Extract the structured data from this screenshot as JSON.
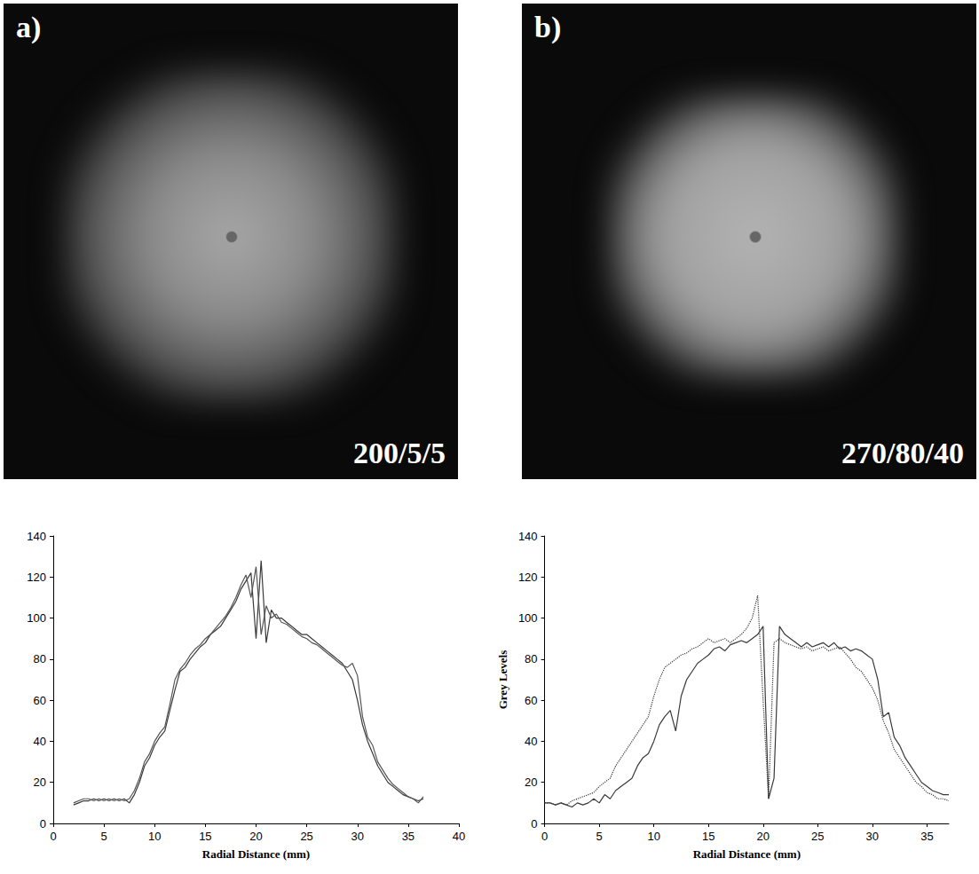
{
  "panels": [
    {
      "label": "a)",
      "caption": "200/5/5"
    },
    {
      "label": "b)",
      "caption": "270/80/40"
    }
  ],
  "chart_data": [
    {
      "type": "line",
      "x": [
        2,
        2.5,
        3,
        3.5,
        4,
        4.5,
        5,
        5.5,
        6,
        6.5,
        7,
        7.5,
        8,
        8.5,
        9,
        9.5,
        10,
        10.5,
        11,
        11.5,
        12,
        12.5,
        13,
        13.5,
        14,
        14.5,
        15,
        15.5,
        16,
        16.5,
        17,
        17.5,
        18,
        18.5,
        19,
        19.5,
        20,
        20.5,
        21,
        21.5,
        22,
        22.5,
        23,
        23.5,
        24,
        24.5,
        25,
        25.5,
        26,
        26.5,
        27,
        27.5,
        28,
        28.5,
        29,
        29.5,
        30,
        30.5,
        31,
        31.5,
        32,
        32.5,
        33,
        33.5,
        34,
        34.5,
        35,
        35.5,
        36,
        36.5
      ],
      "series": [
        {
          "color": "#3a3a3a",
          "line_style": "solid",
          "values": [
            9,
            10,
            11,
            11,
            12,
            11,
            12,
            11,
            12,
            11,
            12,
            10,
            14,
            20,
            28,
            32,
            38,
            42,
            45,
            55,
            65,
            74,
            76,
            80,
            83,
            86,
            88,
            92,
            94,
            96,
            100,
            104,
            108,
            114,
            118,
            122,
            90,
            128,
            88,
            104,
            100,
            100,
            98,
            96,
            94,
            92,
            92,
            90,
            88,
            86,
            84,
            82,
            80,
            78,
            74,
            70,
            60,
            48,
            40,
            34,
            28,
            24,
            20,
            18,
            16,
            14,
            13,
            12,
            11,
            12
          ]
        },
        {
          "color": "#555555",
          "line_style": "solid",
          "values": [
            10,
            11,
            12,
            12,
            11,
            12,
            11,
            12,
            11,
            12,
            11,
            12,
            16,
            22,
            30,
            34,
            40,
            44,
            47,
            58,
            70,
            75,
            78,
            82,
            85,
            87,
            90,
            92,
            95,
            98,
            101,
            105,
            110,
            116,
            121,
            110,
            125,
            92,
            106,
            100,
            102,
            98,
            97,
            95,
            93,
            91,
            90,
            88,
            87,
            85,
            83,
            81,
            79,
            77,
            76,
            78,
            72,
            52,
            42,
            38,
            30,
            26,
            22,
            19,
            17,
            15,
            13,
            12,
            10,
            13
          ]
        }
      ],
      "xlim": [
        0,
        40
      ],
      "xticks": [
        0,
        5,
        10,
        15,
        20,
        25,
        30,
        35,
        40
      ],
      "ylim": [
        0,
        140
      ],
      "yticks": [
        0,
        20,
        40,
        60,
        80,
        100,
        120,
        140
      ],
      "xlabel": "Radial Distance (mm)",
      "grid": false
    },
    {
      "type": "line",
      "x": [
        0,
        0.5,
        1,
        1.5,
        2,
        2.5,
        3,
        3.5,
        4,
        4.5,
        5,
        5.5,
        6,
        6.5,
        7,
        7.5,
        8,
        8.5,
        9,
        9.5,
        10,
        10.5,
        11,
        11.5,
        12,
        12.5,
        13,
        13.5,
        14,
        14.5,
        15,
        15.5,
        16,
        16.5,
        17,
        17.5,
        18,
        18.5,
        19,
        19.5,
        20,
        20.5,
        21,
        21.5,
        22,
        22.5,
        23,
        23.5,
        24,
        24.5,
        25,
        25.5,
        26,
        26.5,
        27,
        27.5,
        28,
        28.5,
        29,
        29.5,
        30,
        30.5,
        31,
        31.5,
        32,
        32.5,
        33,
        33.5,
        34,
        34.5,
        35,
        35.5,
        36,
        36.5,
        37
      ],
      "series": [
        {
          "color": "#3a3a3a",
          "line_style": "solid",
          "values": [
            10,
            10,
            9,
            10,
            9,
            8,
            10,
            9,
            10,
            12,
            10,
            14,
            12,
            16,
            18,
            20,
            22,
            28,
            32,
            34,
            40,
            48,
            52,
            55,
            45,
            62,
            70,
            74,
            78,
            80,
            82,
            85,
            86,
            84,
            87,
            88,
            89,
            88,
            90,
            92,
            96,
            12,
            22,
            96,
            92,
            90,
            88,
            86,
            88,
            86,
            87,
            88,
            86,
            88,
            85,
            86,
            84,
            85,
            84,
            82,
            80,
            70,
            52,
            54,
            42,
            38,
            32,
            28,
            24,
            20,
            18,
            16,
            15,
            14,
            14
          ]
        },
        {
          "color": "#3a3a3a",
          "line_style": "dotted",
          "values": [
            10,
            10,
            9,
            10,
            9,
            11,
            12,
            13,
            14,
            15,
            18,
            20,
            22,
            28,
            32,
            36,
            40,
            44,
            48,
            52,
            62,
            70,
            76,
            78,
            80,
            82,
            83,
            85,
            86,
            88,
            90,
            88,
            89,
            90,
            88,
            90,
            92,
            95,
            100,
            111,
            60,
            12,
            88,
            90,
            88,
            87,
            86,
            85,
            86,
            84,
            85,
            86,
            84,
            85,
            86,
            83,
            80,
            76,
            74,
            70,
            66,
            60,
            50,
            44,
            36,
            32,
            28,
            24,
            20,
            18,
            15,
            14,
            12,
            12,
            11
          ]
        }
      ],
      "xlim": [
        0,
        37
      ],
      "xticks": [
        0,
        5,
        10,
        15,
        20,
        25,
        30,
        35
      ],
      "ylim": [
        0,
        140
      ],
      "yticks": [
        0,
        20,
        40,
        60,
        80,
        100,
        120,
        140
      ],
      "xlabel": "Radial Distance (mm)",
      "ylabel": "Grey Levels",
      "grid": false
    }
  ]
}
